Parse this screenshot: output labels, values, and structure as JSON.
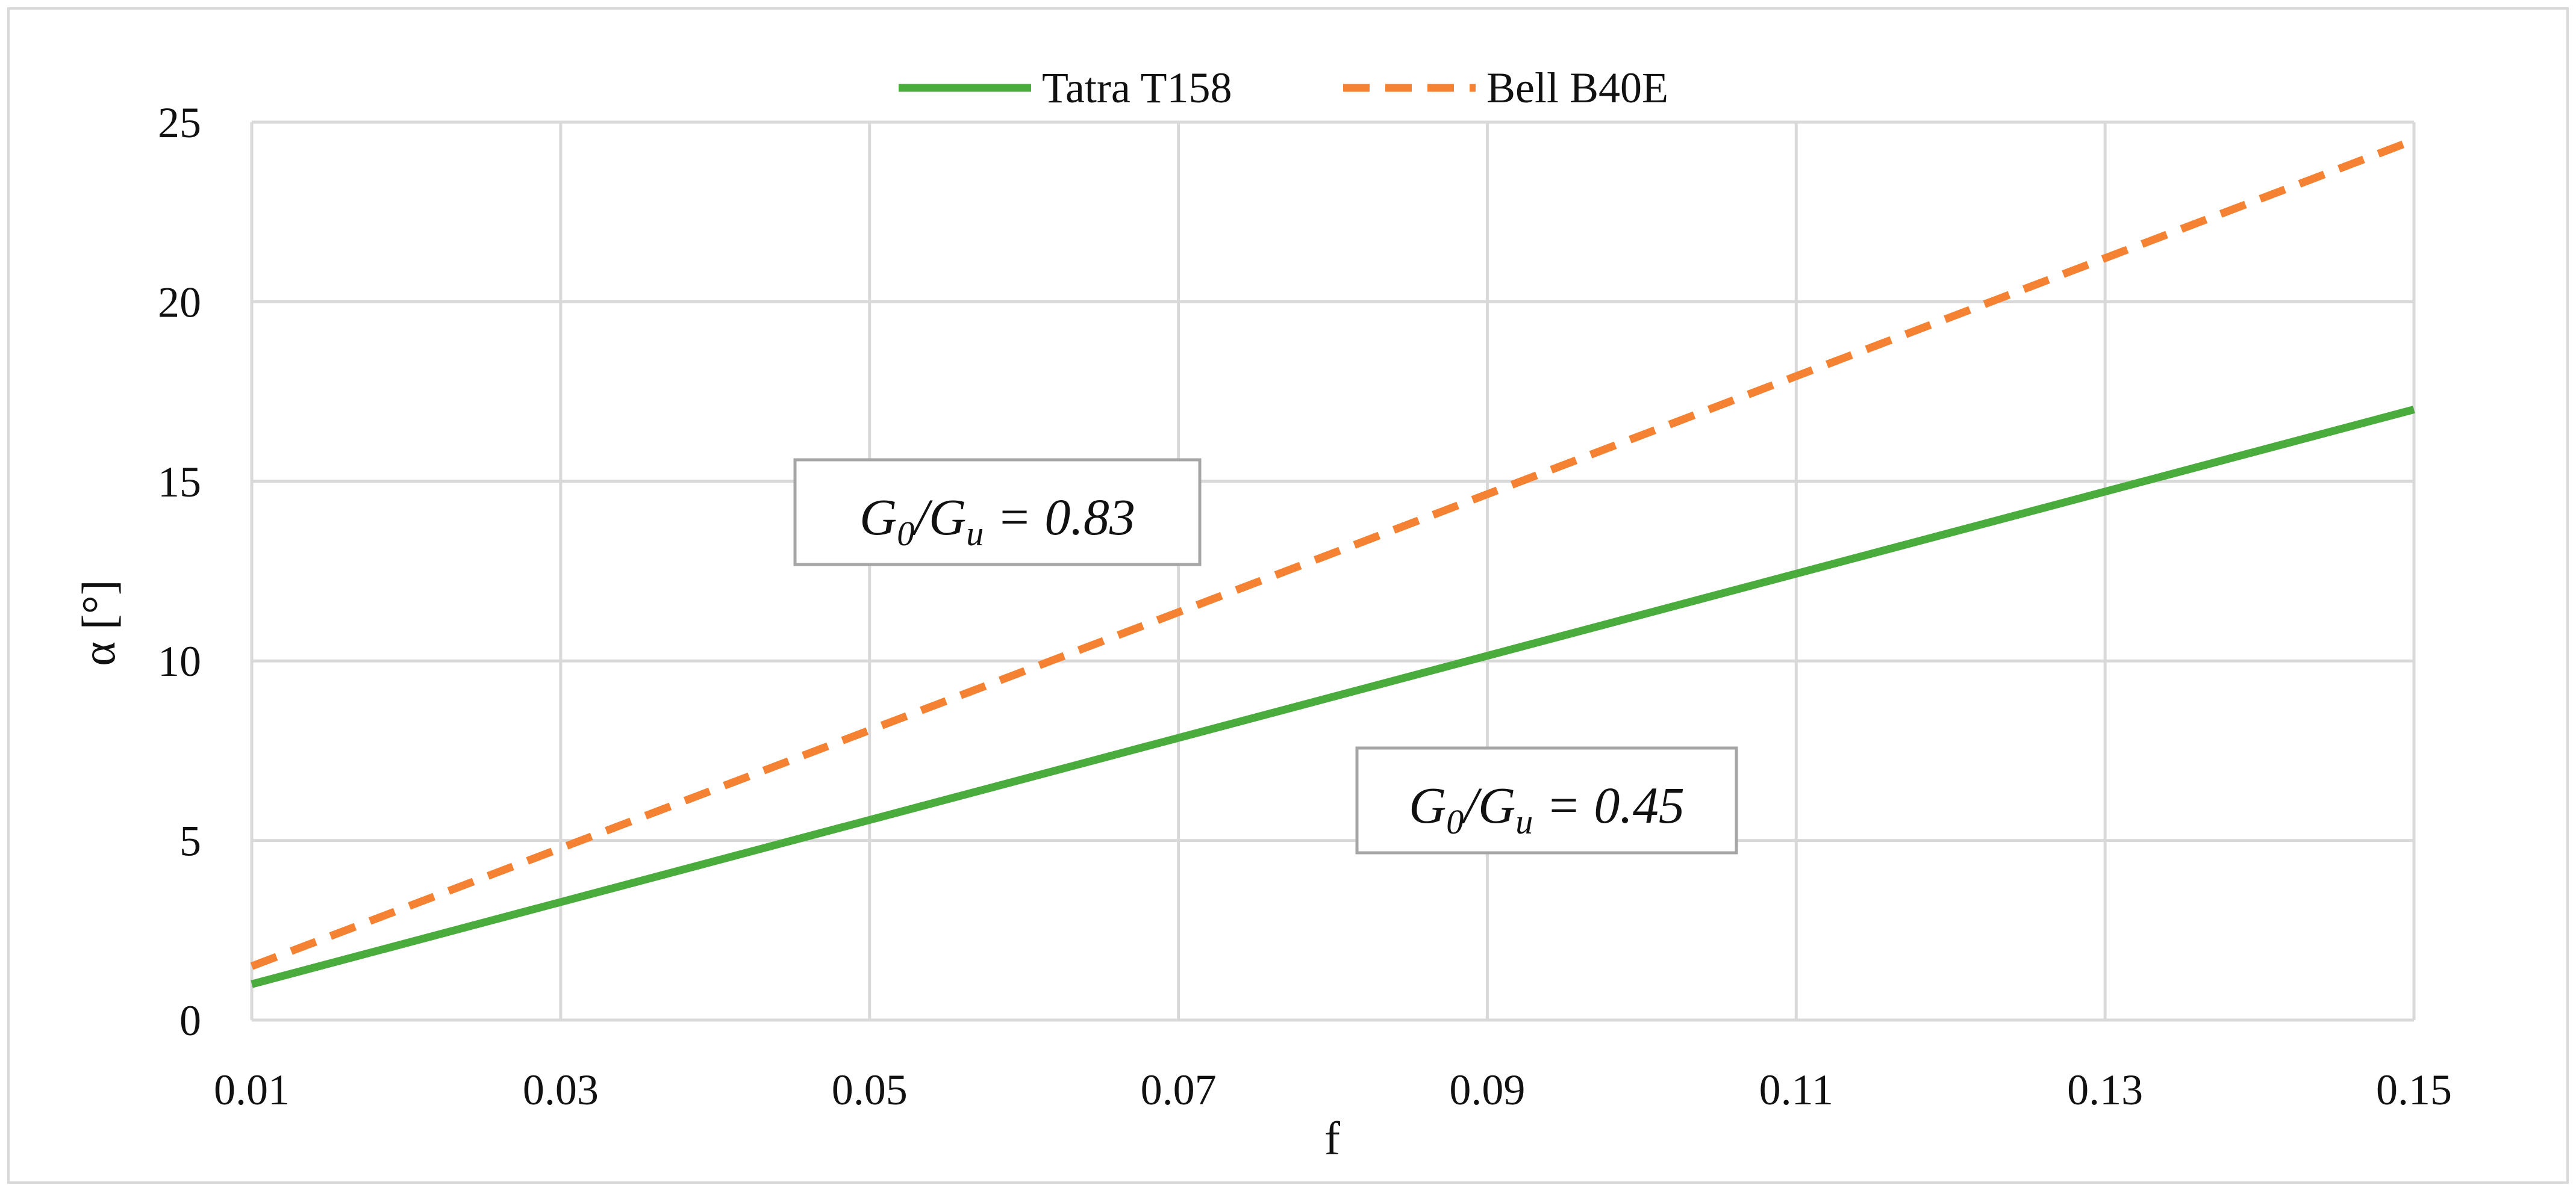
{
  "chart_data": {
    "type": "line",
    "title": "",
    "xlabel": "f",
    "ylabel": "α [°]",
    "x": [
      0.01,
      0.15
    ],
    "xlim": [
      0.01,
      0.15
    ],
    "ylim": [
      0,
      25
    ],
    "xticks": [
      0.01,
      0.03,
      0.05,
      0.07,
      0.09,
      0.11,
      0.13,
      0.15
    ],
    "yticks": [
      0,
      5,
      10,
      15,
      20,
      25
    ],
    "xtick_labels": [
      "0.01",
      "0.03",
      "0.05",
      "0.07",
      "0.09",
      "0.11",
      "0.13",
      "0.15"
    ],
    "ytick_labels": [
      "0",
      "5",
      "10",
      "15",
      "20",
      "25"
    ],
    "grid": true,
    "legend_position": "top-center",
    "series": [
      {
        "name": "Tatra T158",
        "values": [
          1.0,
          17.0
        ],
        "color": "#4aac3c",
        "style": "solid"
      },
      {
        "name": "Bell B40E",
        "values": [
          1.5,
          24.5
        ],
        "color": "#f58232",
        "style": "dashed"
      }
    ],
    "annotations": [
      {
        "id": "bell",
        "main": "G",
        "sub1": "0",
        "mid": "/G",
        "sub2": "u",
        "tail": " = 0.83"
      },
      {
        "id": "tatra",
        "main": "G",
        "sub1": "0",
        "mid": "/G",
        "sub2": "u",
        "tail": " = 0.45"
      }
    ]
  }
}
